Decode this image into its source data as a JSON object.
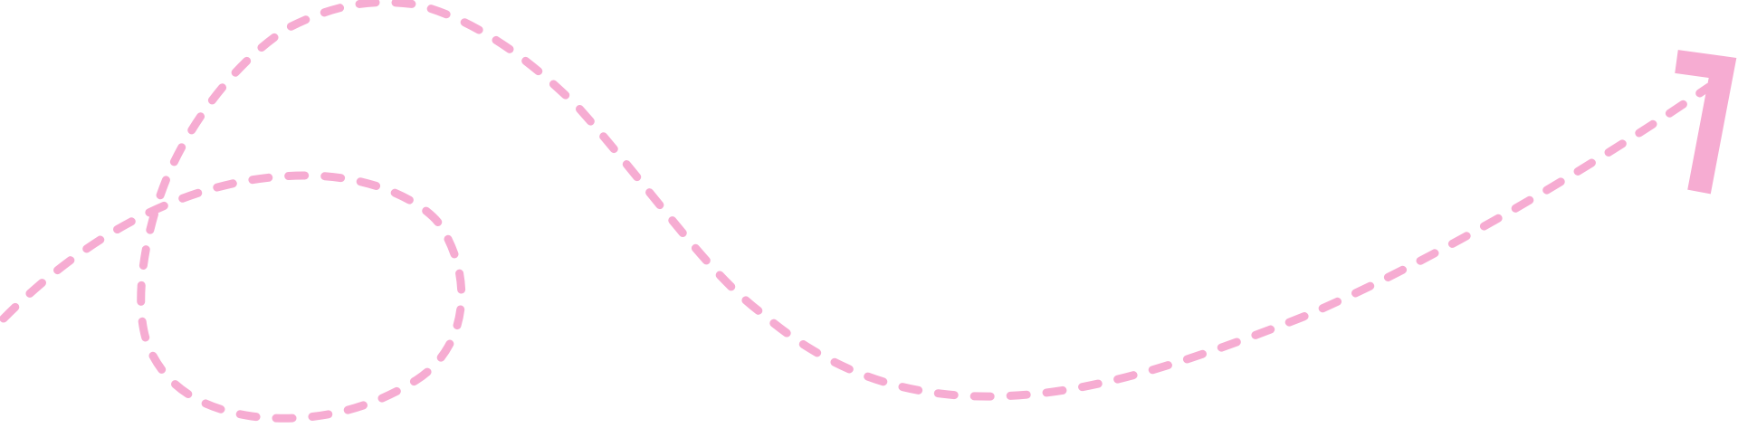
{
  "illustration": {
    "icon": "dashed-looping-arrow-icon",
    "stroke_color": "#f6acd2"
  }
}
